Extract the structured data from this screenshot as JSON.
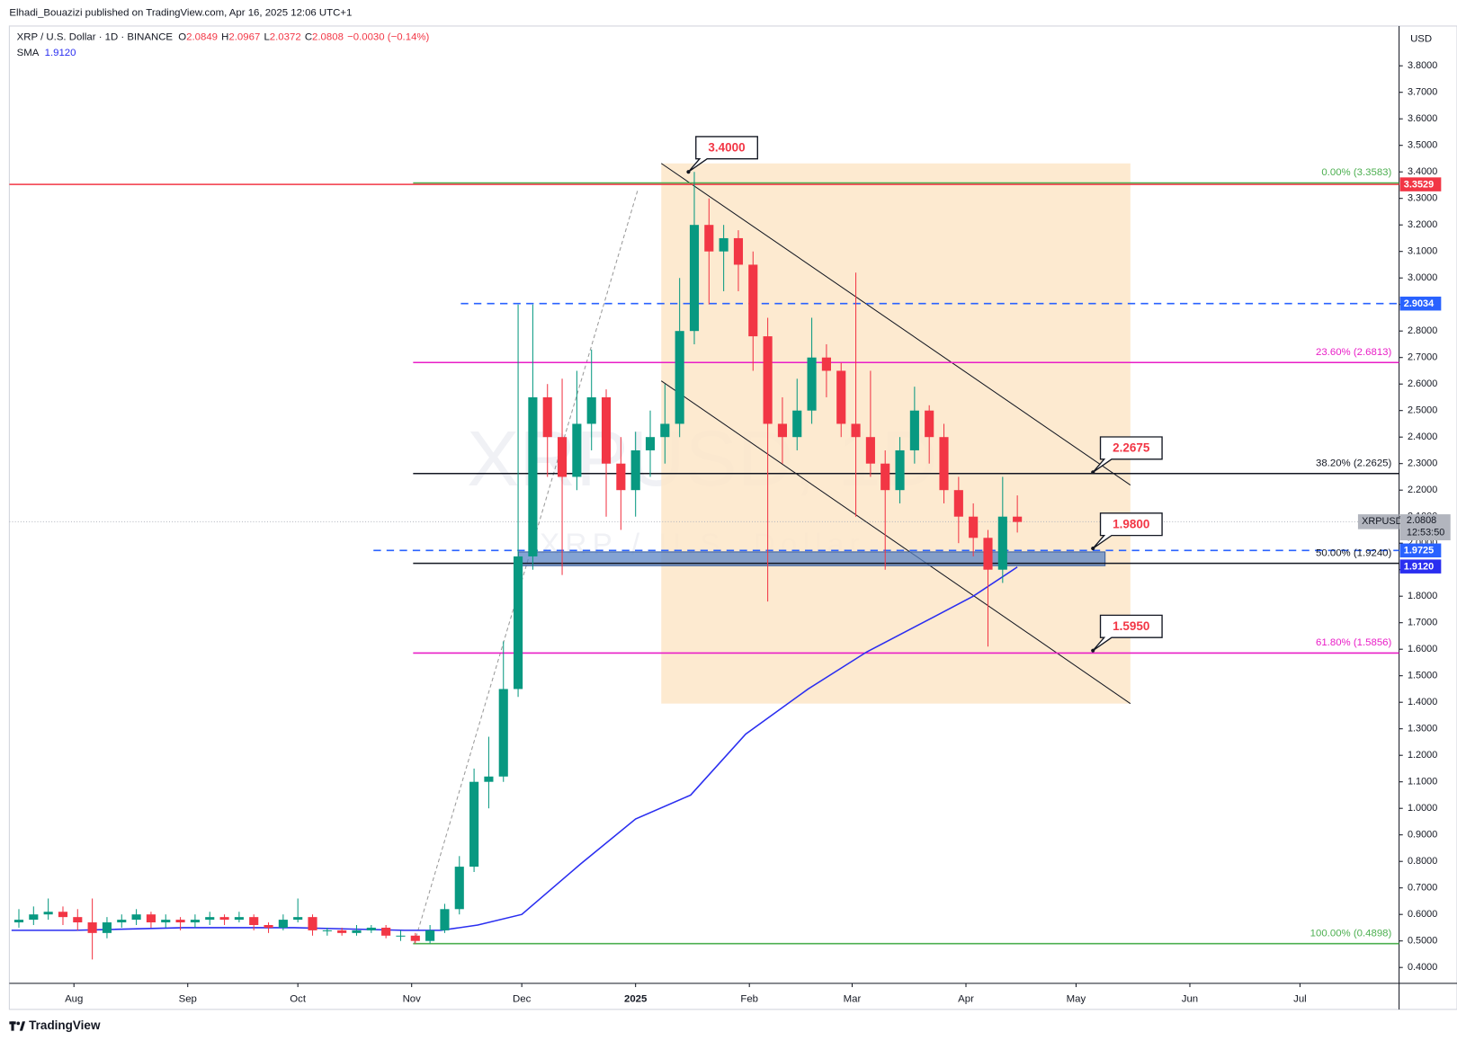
{
  "header": {
    "published": "Elhadi_Bouazizi published on TradingView.com, Apr 16, 2025 12:06 UTC+1",
    "branding": "TradingView"
  },
  "chart_data": {
    "type": "candlestick",
    "symbol": "XRP / U.S. Dollar · 1D · BINANCE",
    "ohlc_legend": [
      {
        "key": "O",
        "value": 2.0849
      },
      {
        "key": "H",
        "value": 2.0967
      },
      {
        "key": "L",
        "value": 2.0372
      },
      {
        "key": "C",
        "value": 2.0808
      }
    ],
    "change": "−0.0030 (−0.14%)",
    "currency": "USD",
    "watermark": {
      "symbol": "XRPUSD, 1D",
      "description": "XRP / U.S. Dollar"
    },
    "up_color": "#089981",
    "down_color": "#f23645",
    "xlim": [
      -17.6,
      361
    ],
    "ylim": [
      0.34,
      3.95
    ],
    "xticks": [
      {
        "value": 0,
        "label": "Aug"
      },
      {
        "value": 31,
        "label": "Sep"
      },
      {
        "value": 61,
        "label": "Oct"
      },
      {
        "value": 92,
        "label": "Nov"
      },
      {
        "value": 122,
        "label": "Dec"
      },
      {
        "value": 153,
        "label": "2025"
      },
      {
        "value": 184,
        "label": "Feb"
      },
      {
        "value": 212,
        "label": "Mar"
      },
      {
        "value": 243,
        "label": "Apr"
      },
      {
        "value": 273,
        "label": "May"
      },
      {
        "value": 304,
        "label": "Jun"
      },
      {
        "value": 334,
        "label": "Jul"
      }
    ],
    "yticks": [
      {
        "value": 0.4,
        "label": "0.4000"
      },
      {
        "value": 0.5,
        "label": "0.5000"
      },
      {
        "value": 0.6,
        "label": "0.6000"
      },
      {
        "value": 0.7,
        "label": "0.7000"
      },
      {
        "value": 0.8,
        "label": "0.8000"
      },
      {
        "value": 0.9,
        "label": "0.9000"
      },
      {
        "value": 1.0,
        "label": "1.0000"
      },
      {
        "value": 1.1,
        "label": "1.1000"
      },
      {
        "value": 1.2,
        "label": "1.2000"
      },
      {
        "value": 1.3,
        "label": "1.3000"
      },
      {
        "value": 1.4,
        "label": "1.4000"
      },
      {
        "value": 1.5,
        "label": "1.5000"
      },
      {
        "value": 1.6,
        "label": "1.6000"
      },
      {
        "value": 1.7,
        "label": "1.7000"
      },
      {
        "value": 1.8,
        "label": "1.8000"
      },
      {
        "value": 1.9,
        "label": "1.9000"
      },
      {
        "value": 2.0,
        "label": "2.0000"
      },
      {
        "value": 2.1,
        "label": "2.1000"
      },
      {
        "value": 2.2,
        "label": "2.2000"
      },
      {
        "value": 2.3,
        "label": "2.3000"
      },
      {
        "value": 2.4,
        "label": "2.4000"
      },
      {
        "value": 2.5,
        "label": "2.5000"
      },
      {
        "value": 2.6,
        "label": "2.6000"
      },
      {
        "value": 2.7,
        "label": "2.7000"
      },
      {
        "value": 2.8,
        "label": "2.8000"
      },
      {
        "value": 2.9,
        "label": "2.9000"
      },
      {
        "value": 3.0,
        "label": "3.0000"
      },
      {
        "value": 3.1,
        "label": "3.1000"
      },
      {
        "value": 3.2,
        "label": "3.2000"
      },
      {
        "value": 3.3,
        "label": "3.3000"
      },
      {
        "value": 3.4,
        "label": "3.4000"
      },
      {
        "value": 3.5,
        "label": "3.5000"
      },
      {
        "value": 3.6,
        "label": "3.6000"
      },
      {
        "value": 3.7,
        "label": "3.7000"
      },
      {
        "value": 3.8,
        "label": "3.8000"
      }
    ],
    "x": [
      -15,
      -11,
      -7,
      -3,
      1,
      5,
      9,
      13,
      17,
      21,
      25,
      29,
      33,
      37,
      41,
      45,
      49,
      53,
      57,
      61,
      65,
      69,
      73,
      77,
      81,
      85,
      89,
      93,
      97,
      101,
      105,
      109,
      113,
      117,
      121,
      125,
      129,
      133,
      137,
      141,
      145,
      149,
      153,
      157,
      161,
      165,
      169,
      173,
      177,
      181,
      185,
      189,
      193,
      197,
      201,
      205,
      209,
      213,
      217,
      221,
      225,
      229,
      233,
      237,
      241,
      245,
      249,
      253,
      257
    ],
    "open": [
      0.57,
      0.58,
      0.6,
      0.61,
      0.59,
      0.57,
      0.53,
      0.57,
      0.58,
      0.6,
      0.57,
      0.58,
      0.57,
      0.58,
      0.59,
      0.58,
      0.59,
      0.56,
      0.55,
      0.58,
      0.59,
      0.54,
      0.54,
      0.53,
      0.54,
      0.55,
      0.52,
      0.52,
      0.5,
      0.54,
      0.62,
      0.78,
      1.1,
      1.12,
      1.45,
      1.95,
      2.55,
      2.4,
      2.25,
      2.45,
      2.55,
      2.3,
      2.2,
      2.35,
      2.4,
      2.45,
      2.8,
      3.2,
      3.1,
      3.15,
      3.05,
      2.78,
      2.45,
      2.4,
      2.5,
      2.7,
      2.65,
      2.45,
      2.4,
      2.3,
      2.2,
      2.35,
      2.5,
      2.4,
      2.2,
      2.1,
      2.02,
      1.9,
      2.1
    ],
    "high": [
      0.62,
      0.63,
      0.66,
      0.63,
      0.62,
      0.66,
      0.59,
      0.6,
      0.62,
      0.61,
      0.6,
      0.59,
      0.6,
      0.61,
      0.6,
      0.61,
      0.6,
      0.57,
      0.6,
      0.66,
      0.6,
      0.55,
      0.55,
      0.56,
      0.56,
      0.56,
      0.54,
      0.53,
      0.56,
      0.64,
      0.82,
      1.15,
      1.27,
      1.63,
      2.9,
      2.9,
      2.6,
      2.62,
      2.65,
      2.73,
      2.58,
      2.4,
      2.42,
      2.5,
      2.6,
      3.0,
      3.4,
      3.3,
      3.2,
      3.18,
      3.1,
      2.85,
      2.55,
      2.62,
      2.85,
      2.75,
      2.68,
      3.02,
      2.65,
      2.35,
      2.4,
      2.59,
      2.52,
      2.45,
      2.25,
      2.15,
      2.05,
      2.25,
      2.18
    ],
    "low": [
      0.55,
      0.56,
      0.58,
      0.56,
      0.54,
      0.43,
      0.51,
      0.55,
      0.56,
      0.55,
      0.55,
      0.54,
      0.55,
      0.56,
      0.56,
      0.57,
      0.54,
      0.53,
      0.54,
      0.57,
      0.52,
      0.52,
      0.52,
      0.52,
      0.53,
      0.51,
      0.5,
      0.49,
      0.49,
      0.53,
      0.6,
      0.76,
      1.0,
      1.1,
      1.42,
      1.9,
      2.25,
      1.88,
      2.2,
      2.35,
      2.1,
      2.05,
      2.1,
      2.25,
      2.3,
      2.4,
      2.75,
      2.9,
      2.95,
      2.95,
      2.65,
      1.78,
      2.3,
      2.35,
      2.45,
      2.55,
      2.4,
      2.1,
      2.25,
      1.9,
      2.15,
      2.3,
      2.3,
      2.15,
      2.0,
      1.95,
      1.61,
      1.85,
      2.04
    ],
    "close": [
      0.58,
      0.6,
      0.61,
      0.59,
      0.57,
      0.53,
      0.57,
      0.58,
      0.6,
      0.57,
      0.58,
      0.57,
      0.58,
      0.59,
      0.58,
      0.59,
      0.56,
      0.55,
      0.58,
      0.59,
      0.54,
      0.54,
      0.53,
      0.54,
      0.55,
      0.52,
      0.52,
      0.5,
      0.54,
      0.62,
      0.78,
      1.1,
      1.12,
      1.45,
      1.95,
      2.55,
      2.4,
      2.25,
      2.45,
      2.55,
      2.3,
      2.2,
      2.35,
      2.4,
      2.45,
      2.8,
      3.2,
      3.1,
      3.15,
      3.05,
      2.78,
      2.45,
      2.4,
      2.5,
      2.7,
      2.65,
      2.45,
      2.4,
      2.3,
      2.2,
      2.35,
      2.5,
      2.4,
      2.2,
      2.1,
      2.02,
      1.9,
      2.1,
      2.08
    ],
    "sma": {
      "name": "SMA",
      "legend_value": "1.9120",
      "color": "#2a2ef0",
      "x": [
        -17,
        0,
        30,
        60,
        90,
        100,
        110,
        122,
        138,
        153,
        168,
        183,
        200,
        216,
        234,
        245,
        257
      ],
      "values": [
        0.54,
        0.54,
        0.55,
        0.55,
        0.54,
        0.54,
        0.56,
        0.6,
        0.79,
        0.96,
        1.05,
        1.28,
        1.45,
        1.59,
        1.72,
        1.8,
        1.91
      ]
    },
    "fib_levels": [
      {
        "label": "0.00% (3.3583)",
        "value": 3.3583,
        "color": "#4caf50",
        "x0": 92.4
      },
      {
        "label": "23.60% (2.6813)",
        "value": 2.6813,
        "color": "#e91ec7",
        "x0": 92.4
      },
      {
        "label": "38.20% (2.2625)",
        "value": 2.2625,
        "color": "#131722",
        "x0": 92.4
      },
      {
        "label": "50.00% (1.9240)",
        "value": 1.924,
        "color": "#131722",
        "x0": 92.4
      },
      {
        "label": "61.80% (1.5856)",
        "value": 1.5856,
        "color": "#e91ec7",
        "x0": 92.4
      },
      {
        "label": "100.00% (0.4898)",
        "value": 0.4898,
        "color": "#4caf50",
        "x0": 92.4
      }
    ],
    "lines": [
      {
        "value": 3.3529,
        "color": "#f23645",
        "x0": -17.6,
        "dashed": false
      },
      {
        "value": 2.9034,
        "color": "#2962ff",
        "x0": 105.4,
        "dashed": true
      },
      {
        "value": 1.9725,
        "color": "#2962ff",
        "x0": 81.6,
        "dashed": true
      }
    ],
    "price_tags": [
      {
        "value": 3.3529,
        "label": "3.3529",
        "color": "#f23645"
      },
      {
        "value": 2.9034,
        "label": "2.9034",
        "color": "#2962ff"
      },
      {
        "value": 1.9725,
        "label": "1.9725",
        "color": "#2962ff"
      },
      {
        "value": 1.912,
        "label": "1.9120",
        "color": "#2a2ef0"
      }
    ],
    "last_price": {
      "symbol": "XRPUSD",
      "value": 2.0808,
      "countdown": "12:53:50"
    },
    "callouts": [
      {
        "value": 3.4,
        "label": "3.4000",
        "x": 167.4
      },
      {
        "value": 2.2675,
        "label": "2.2675",
        "x": 277.6
      },
      {
        "value": 1.98,
        "label": "1.9800",
        "x": 277.6
      },
      {
        "value": 1.595,
        "label": "1.5950",
        "x": 277.6
      }
    ],
    "channel": {
      "x": [
        160,
        287.8
      ],
      "upper": [
        3.432,
        2.219
      ],
      "lower": [
        2.612,
        1.395
      ],
      "fill": "#fde6c8"
    },
    "zone": {
      "x": [
        121.1,
        280.9
      ],
      "y": [
        1.915,
        1.967
      ],
      "color": "#5b84c4"
    },
    "trend_line": {
      "x": [
        92.7,
        153.7
      ],
      "y": [
        0.491,
        3.337
      ]
    }
  }
}
